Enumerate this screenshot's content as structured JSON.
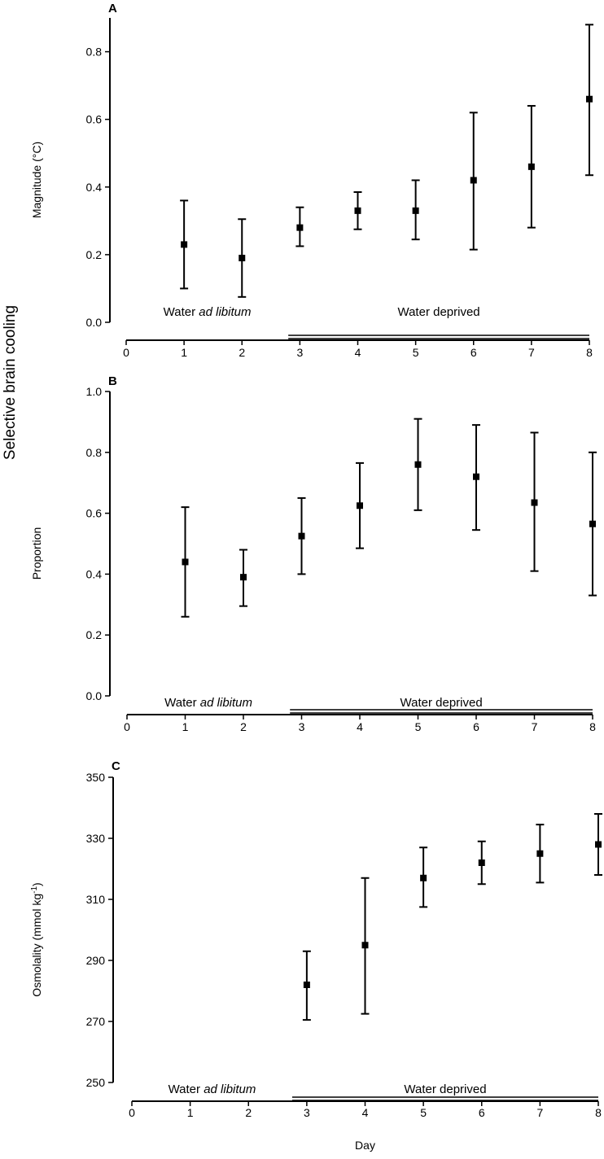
{
  "figure": {
    "common_ylabel": "Selective brain cooling"
  },
  "chart_data": [
    {
      "type": "scatter",
      "panel": "A",
      "xlabel": "",
      "ylabel": "Magnitude (°C)",
      "xlim": [
        0,
        8
      ],
      "ylim": [
        0,
        0.9
      ],
      "xticks": [
        0,
        1,
        2,
        3,
        4,
        5,
        6,
        7,
        8
      ],
      "yticks": [
        0.0,
        0.2,
        0.4,
        0.6,
        0.8
      ],
      "ytick_labels": [
        "0.0",
        "0.2",
        "0.4",
        "0.6",
        "0.8"
      ],
      "grid": false,
      "conditions": [
        {
          "label_plain": "Water ",
          "label_italic": "ad libitum",
          "from": 0,
          "to": 2.8
        },
        {
          "label_plain": "Water deprived",
          "label_italic": "",
          "from": 2.8,
          "to": 8
        }
      ],
      "series": [
        {
          "x": [
            1,
            2,
            3,
            4,
            5,
            6,
            7,
            8
          ],
          "y": [
            0.23,
            0.19,
            0.28,
            0.33,
            0.33,
            0.42,
            0.46,
            0.66
          ],
          "low": [
            0.1,
            0.075,
            0.225,
            0.275,
            0.245,
            0.215,
            0.28,
            0.435
          ],
          "high": [
            0.36,
            0.305,
            0.34,
            0.385,
            0.42,
            0.62,
            0.64,
            0.88
          ]
        }
      ]
    },
    {
      "type": "scatter",
      "panel": "B",
      "xlabel": "",
      "ylabel": "Proportion",
      "xlim": [
        0,
        8
      ],
      "ylim": [
        0,
        1.0
      ],
      "xticks": [
        0,
        1,
        2,
        3,
        4,
        5,
        6,
        7,
        8
      ],
      "yticks": [
        0.0,
        0.2,
        0.4,
        0.6,
        0.8,
        1.0
      ],
      "ytick_labels": [
        "0.0",
        "0.2",
        "0.4",
        "0.6",
        "0.8",
        "1.0"
      ],
      "grid": false,
      "conditions": [
        {
          "label_plain": "Water ",
          "label_italic": "ad libitum",
          "from": 0,
          "to": 2.8
        },
        {
          "label_plain": "Water deprived",
          "label_italic": "",
          "from": 2.8,
          "to": 8
        }
      ],
      "series": [
        {
          "x": [
            1,
            2,
            3,
            4,
            5,
            6,
            7,
            8
          ],
          "y": [
            0.44,
            0.39,
            0.525,
            0.625,
            0.76,
            0.72,
            0.635,
            0.565
          ],
          "low": [
            0.26,
            0.295,
            0.4,
            0.485,
            0.61,
            0.545,
            0.41,
            0.33
          ],
          "high": [
            0.62,
            0.48,
            0.65,
            0.765,
            0.91,
            0.89,
            0.865,
            0.8
          ]
        }
      ]
    },
    {
      "type": "scatter",
      "panel": "C",
      "xlabel": "Day",
      "ylabel_main": "Osmolality (mmol kg",
      "ylabel_sup": "-1",
      "ylabel_end": ")",
      "xlim": [
        0,
        8
      ],
      "ylim": [
        250,
        350
      ],
      "xticks": [
        0,
        1,
        2,
        3,
        4,
        5,
        6,
        7,
        8
      ],
      "yticks": [
        250,
        270,
        290,
        310,
        330,
        350
      ],
      "ytick_labels": [
        "250",
        "270",
        "290",
        "310",
        "330",
        "350"
      ],
      "grid": false,
      "conditions": [
        {
          "label_plain": "Water ",
          "label_italic": "ad libitum",
          "from": 0,
          "to": 2.75
        },
        {
          "label_plain": "Water deprived",
          "label_italic": "",
          "from": 2.75,
          "to": 8
        }
      ],
      "series": [
        {
          "x": [
            3,
            4,
            5,
            6,
            7,
            8
          ],
          "y": [
            282,
            295,
            317,
            322,
            325,
            328
          ],
          "low": [
            270.5,
            272.5,
            307.5,
            315,
            315.5,
            318
          ],
          "high": [
            293,
            317,
            327,
            329,
            334.5,
            338
          ]
        }
      ]
    }
  ]
}
